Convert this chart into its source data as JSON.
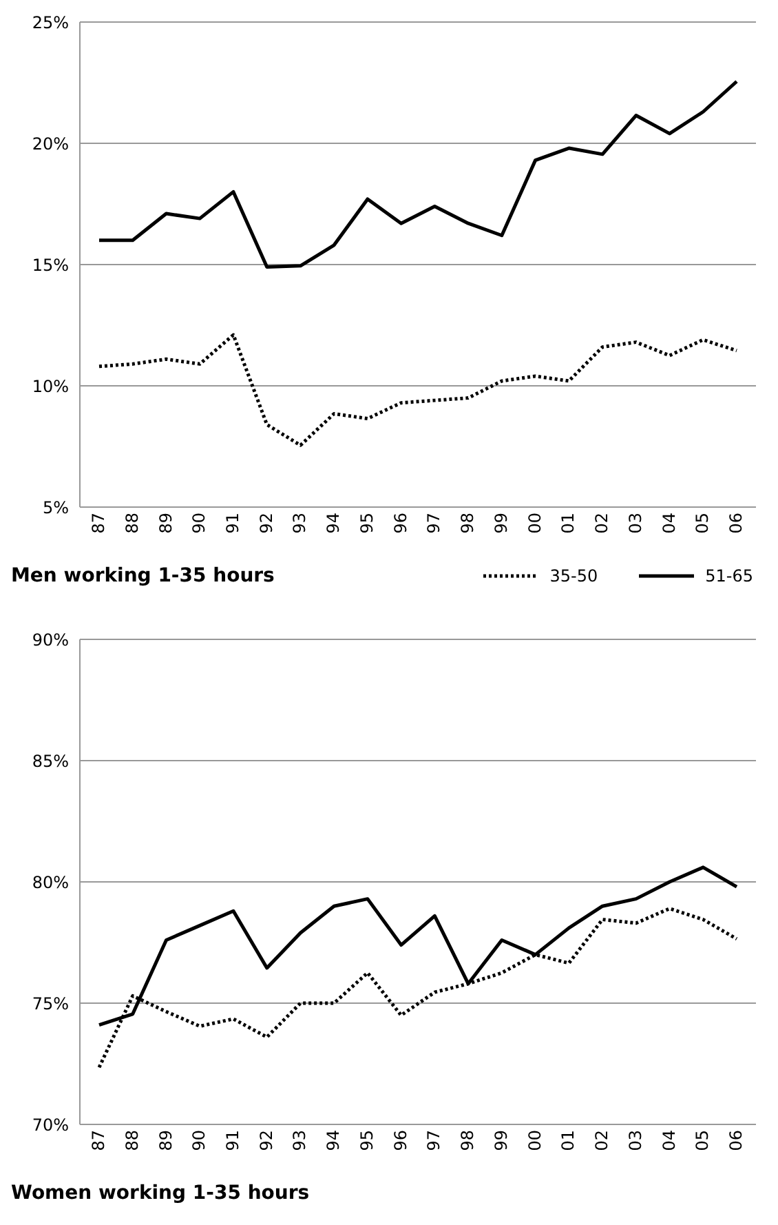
{
  "chart_data": [
    {
      "type": "line",
      "title": "Men working 1-35 hours",
      "categories": [
        "87",
        "88",
        "89",
        "90",
        "91",
        "92",
        "93",
        "94",
        "95",
        "96",
        "97",
        "98",
        "99",
        "00",
        "01",
        "02",
        "03",
        "04",
        "05",
        "06"
      ],
      "series": [
        {
          "name": "35-50",
          "color": "#000000",
          "line_style": "dotted",
          "values": [
            10.8,
            10.9,
            11.1,
            10.9,
            12.1,
            8.4,
            7.55,
            8.85,
            8.65,
            9.3,
            9.4,
            9.5,
            10.2,
            10.4,
            10.2,
            11.6,
            11.8,
            11.25,
            11.9,
            11.45
          ]
        },
        {
          "name": "51-65",
          "color": "#000000",
          "line_style": "solid",
          "values": [
            16.0,
            16.0,
            17.1,
            16.9,
            18.0,
            14.9,
            14.95,
            15.8,
            17.7,
            16.7,
            17.4,
            16.7,
            16.2,
            19.3,
            19.8,
            19.55,
            21.15,
            20.4,
            21.3,
            22.55
          ]
        }
      ],
      "ylim": [
        5,
        25
      ],
      "yticks": [
        {
          "value": 5,
          "label": "5%"
        },
        {
          "value": 10,
          "label": "10%"
        },
        {
          "value": 15,
          "label": "15%"
        },
        {
          "value": 20,
          "label": "20%"
        },
        {
          "value": 25,
          "label": "25%"
        }
      ],
      "grid": "y",
      "legend": "bottom right",
      "marker": "none"
    },
    {
      "type": "line",
      "title": "Women working 1-35 hours",
      "categories": [
        "87",
        "88",
        "89",
        "90",
        "91",
        "92",
        "93",
        "94",
        "95",
        "96",
        "97",
        "98",
        "99",
        "00",
        "01",
        "02",
        "03",
        "04",
        "05",
        "06"
      ],
      "series": [
        {
          "color": "#000000",
          "line_style": "dotted",
          "values": [
            72.35,
            75.3,
            74.65,
            74.05,
            74.35,
            73.6,
            75.0,
            75.0,
            76.25,
            74.5,
            75.45,
            75.8,
            76.25,
            77.0,
            76.65,
            78.45,
            78.3,
            78.9,
            78.45,
            77.65
          ]
        },
        {
          "color": "#000000",
          "line_style": "solid",
          "values": [
            74.1,
            74.55,
            77.6,
            78.2,
            78.8,
            76.45,
            77.9,
            79.0,
            79.3,
            77.4,
            78.6,
            75.8,
            77.6,
            77.0,
            78.1,
            79.0,
            79.3,
            80.0,
            80.6,
            79.8
          ]
        }
      ],
      "ylim": [
        70,
        90
      ],
      "yticks": [
        {
          "value": 70,
          "label": "70%"
        },
        {
          "value": 75,
          "label": "75%"
        },
        {
          "value": 80,
          "label": "80%"
        },
        {
          "value": 85,
          "label": "85%"
        },
        {
          "value": 90,
          "label": "90%"
        }
      ],
      "grid": "y",
      "legend": false,
      "marker": "none"
    }
  ]
}
